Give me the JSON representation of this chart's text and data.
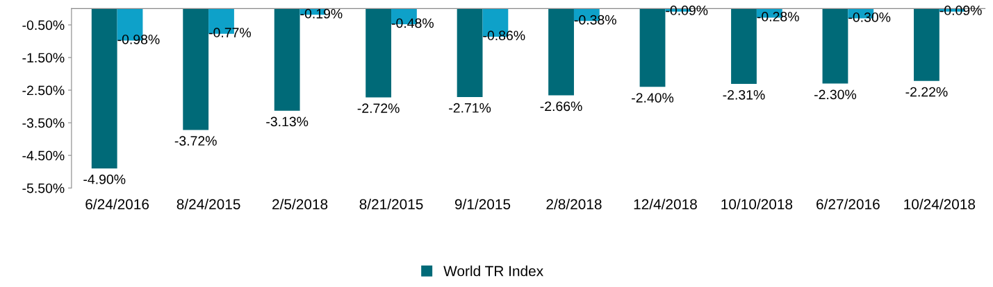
{
  "chart_data": {
    "type": "bar",
    "categories": [
      "6/24/2016",
      "8/24/2015",
      "2/5/2018",
      "8/21/2015",
      "9/1/2015",
      "2/8/2018",
      "12/4/2018",
      "10/10/2018",
      "6/27/2016",
      "10/24/2018"
    ],
    "series": [
      {
        "name": "World TR Index",
        "color": "#006a78",
        "values": [
          -4.9,
          -3.72,
          -3.13,
          -2.72,
          -2.71,
          -2.66,
          -2.4,
          -2.31,
          -2.3,
          -2.22
        ],
        "value_labels": [
          "-4.90%",
          "-3.72%",
          "-3.13%",
          "-2.72%",
          "-2.71%",
          "-2.66%",
          "-2.40%",
          "-2.31%",
          "-2.30%",
          "-2.22%"
        ]
      },
      {
        "color": "#0ea1c9",
        "values": [
          -0.98,
          -0.77,
          -0.19,
          -0.48,
          -0.86,
          -0.38,
          -0.09,
          -0.28,
          -0.3,
          -0.09
        ],
        "value_labels": [
          "-0.98%",
          "-0.77%",
          "-0.19%",
          "-0.48%",
          "-0.86%",
          "-0.38%",
          "-0.09%",
          "-0.28%",
          "-0.30%",
          "-0.09%"
        ]
      }
    ],
    "ylim": [
      -5.5,
      0
    ],
    "yticks": [
      {
        "value": -0.5,
        "label": "-0.50%"
      },
      {
        "value": -1.5,
        "label": "-1.50%"
      },
      {
        "value": -2.5,
        "label": "-2.50%"
      },
      {
        "value": -3.5,
        "label": "-3.50%"
      },
      {
        "value": -4.5,
        "label": "-4.50%"
      },
      {
        "value": -5.5,
        "label": "-5.50%"
      }
    ],
    "grid": false,
    "legend": "bottom"
  }
}
